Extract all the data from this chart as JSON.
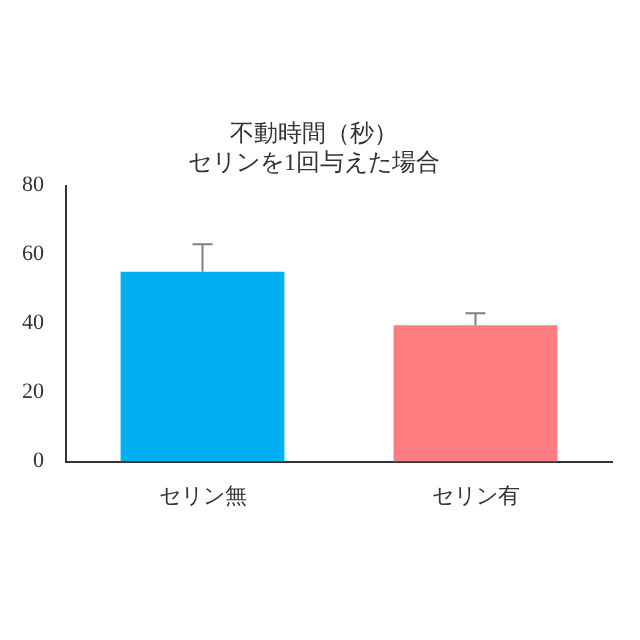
{
  "chart_data": {
    "type": "bar",
    "title": "不動時間（秒）",
    "subtitle": "セリンを1回与えた場合",
    "categories": [
      "セリン無",
      "セリン有"
    ],
    "values": [
      55,
      39.5
    ],
    "colors": [
      "#00b0f0",
      "#ff7c80"
    ],
    "errors": [
      [
        55,
        63
      ],
      [
        39.5,
        43
      ]
    ],
    "ylim": [
      0,
      80
    ],
    "yticks": [
      0,
      20,
      40,
      60,
      80
    ],
    "grid": false,
    "legend": false
  }
}
